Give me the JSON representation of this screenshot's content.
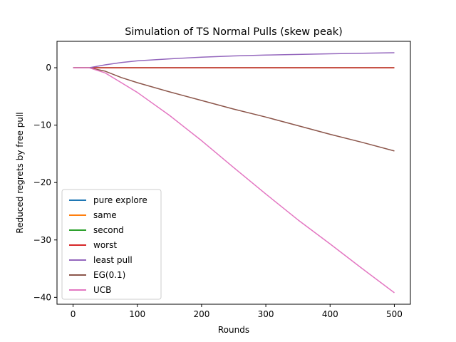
{
  "chart_data": {
    "type": "line",
    "title": "Simulation of TS Normal Pulls (skew peak)",
    "xlabel": "Rounds",
    "ylabel": "Reduced regrets by free pull",
    "xlim": [
      -25,
      525
    ],
    "ylim": [
      -41.2,
      4.6
    ],
    "xticks": [
      0,
      100,
      200,
      300,
      400,
      500
    ],
    "yticks": [
      -40,
      -30,
      -20,
      -10,
      0
    ],
    "xtick_labels": [
      "0",
      "100",
      "200",
      "300",
      "400",
      "500"
    ],
    "ytick_labels": [
      "−40",
      "−30",
      "−20",
      "−10",
      "0"
    ],
    "grid": false,
    "legend_position": "lower-left",
    "x": [
      0,
      25,
      50,
      75,
      100,
      150,
      200,
      250,
      300,
      350,
      400,
      450,
      500
    ],
    "series": [
      {
        "name": "pure explore",
        "color": "#1f77b4",
        "values": [
          0,
          0,
          0,
          0,
          0,
          0,
          0,
          0,
          0,
          0,
          0,
          0,
          0
        ]
      },
      {
        "name": "same",
        "color": "#ff7f0e",
        "values": [
          0,
          0,
          0,
          0,
          0,
          0,
          0,
          0,
          0,
          0,
          0,
          0,
          0
        ]
      },
      {
        "name": "second",
        "color": "#2ca02c",
        "values": [
          0,
          0,
          0,
          0,
          0,
          0,
          0,
          0,
          0,
          0,
          0,
          0,
          0
        ]
      },
      {
        "name": "worst",
        "color": "#d62728",
        "values": [
          0,
          0,
          0,
          0,
          0,
          0,
          0,
          0,
          0,
          0,
          0,
          0,
          0
        ]
      },
      {
        "name": "least pull",
        "color": "#9467bd",
        "values": [
          0,
          0,
          0.5,
          0.9,
          1.2,
          1.55,
          1.85,
          2.05,
          2.2,
          2.32,
          2.43,
          2.52,
          2.62
        ]
      },
      {
        "name": "EG(0.1)",
        "color": "#8c564b",
        "values": [
          0,
          0,
          -0.6,
          -1.7,
          -2.6,
          -4.2,
          -5.7,
          -7.2,
          -8.6,
          -10.1,
          -11.6,
          -13.0,
          -14.5
        ]
      },
      {
        "name": "UCB",
        "color": "#e377c2",
        "values": [
          0,
          0,
          -0.9,
          -2.6,
          -4.3,
          -8.3,
          -12.7,
          -17.4,
          -22.0,
          -26.5,
          -30.7,
          -35.0,
          -39.2
        ]
      }
    ]
  }
}
